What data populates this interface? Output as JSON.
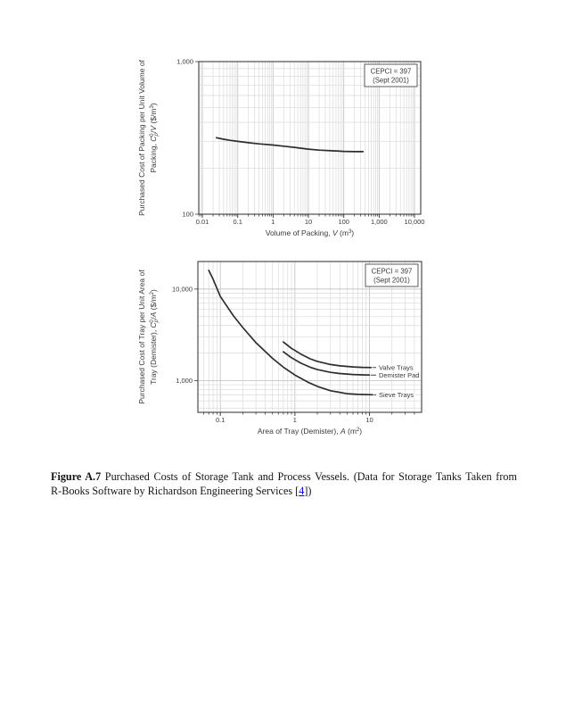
{
  "page": {
    "caption": {
      "label": "Figure A.7",
      "line1_rest": "Purchased Costs of Storage Tank and Process Vessels. (Data for Storage Tanks Taken from",
      "line2_before": "R-Books Software by Richardson Engineering Services [",
      "link_text": "4",
      "line2_after": "])",
      "link_color": "#0000cc"
    }
  },
  "chart_data": [
    {
      "type": "line",
      "name": "packing-cost-chart",
      "xscale": "log",
      "yscale": "log",
      "xlim": [
        0.0079,
        15000
      ],
      "ylim": [
        100,
        1000
      ],
      "xticks": [
        0.01,
        0.1,
        1,
        10,
        100,
        1000,
        10000
      ],
      "xtick_labels": [
        "0.01",
        "0.1",
        "1",
        "10",
        "100",
        "1,000",
        "10,000"
      ],
      "yticks": [
        100,
        1000
      ],
      "ytick_labels": [
        "100",
        "1,000"
      ],
      "grid": true,
      "annotation": [
        "CEPCI = 397",
        "(Sept 2001)"
      ],
      "xlabel_parts": [
        {
          "t": "Volume of Packing,  "
        },
        {
          "t": "V",
          "i": true
        },
        {
          "t": " (m"
        },
        {
          "t": "3",
          "v": "sup"
        },
        {
          "t": ")"
        }
      ],
      "ylabel_lines": [
        [
          {
            "t": "Purchased Cost of Packing per Unit Volume of"
          }
        ],
        [
          {
            "t": "Packing, "
          },
          {
            "t": "C",
            "i": true
          },
          {
            "t": "p",
            "i": true,
            "v": "sub"
          },
          {
            "t": "0",
            "v": "sup",
            "dx": -3.6
          },
          {
            "t": "/",
            "dx": 0.5
          },
          {
            "t": "V",
            "i": true
          },
          {
            "t": " ($/m"
          },
          {
            "t": "3",
            "v": "sup"
          },
          {
            "t": ")"
          }
        ]
      ],
      "series": [
        {
          "name": "Packing",
          "label": null,
          "x": [
            0.025,
            0.04,
            0.06,
            0.1,
            0.2,
            0.4,
            1,
            2,
            4,
            10,
            20,
            50,
            100,
            200,
            350
          ],
          "y": [
            317,
            310,
            305,
            300,
            294,
            289,
            284,
            279,
            274,
            267,
            263,
            260,
            258,
            257,
            257
          ]
        }
      ]
    },
    {
      "type": "line",
      "name": "tray-cost-chart",
      "xscale": "log",
      "yscale": "log",
      "xlim": [
        0.05,
        50
      ],
      "ylim": [
        450,
        20000
      ],
      "xticks": [
        0.1,
        1,
        10
      ],
      "xtick_labels": [
        "0.1",
        "1",
        "10"
      ],
      "yticks": [
        1000,
        10000
      ],
      "ytick_labels": [
        "1,000",
        "10,000"
      ],
      "grid": true,
      "annotation": [
        "CEPCI = 397",
        "(Sept 2001)"
      ],
      "xlabel_parts": [
        {
          "t": "Area of Tray (Demister), "
        },
        {
          "t": "A",
          "i": true
        },
        {
          "t": " (m"
        },
        {
          "t": "2",
          "v": "sup"
        },
        {
          "t": ")"
        }
      ],
      "ylabel_lines": [
        [
          {
            "t": "Purchased Cost of Tray per Unit Area of"
          }
        ],
        [
          {
            "t": "Tray (Demister), "
          },
          {
            "t": "C",
            "i": true
          },
          {
            "t": "p",
            "i": true,
            "v": "sub"
          },
          {
            "t": "0",
            "v": "sup",
            "dx": -3.6
          },
          {
            "t": "/",
            "dx": 0.5
          },
          {
            "t": "A",
            "i": true
          },
          {
            "t": " ($/m"
          },
          {
            "t": "2",
            "v": "sup"
          },
          {
            "t": ")"
          }
        ]
      ],
      "series": [
        {
          "name": "Sieve Trays",
          "label": "Sieve Trays",
          "x": [
            0.07,
            0.08,
            0.1,
            0.15,
            0.2,
            0.3,
            0.5,
            0.7,
            1,
            1.5,
            2,
            3,
            5,
            7,
            11
          ],
          "y": [
            16000,
            12800,
            8300,
            5100,
            3800,
            2600,
            1750,
            1400,
            1150,
            960,
            865,
            775,
            720,
            706,
            700
          ]
        },
        {
          "name": "Valve Trays",
          "label": "Valve Trays",
          "x": [
            0.7,
            0.9,
            1.2,
            1.6,
            2,
            3,
            4,
            6,
            8,
            10.5
          ],
          "y": [
            2640,
            2250,
            1950,
            1730,
            1620,
            1500,
            1450,
            1410,
            1395,
            1390
          ]
        },
        {
          "name": "Demister Pad",
          "label": "Demister Pad",
          "x": [
            0.7,
            0.9,
            1.2,
            1.6,
            2,
            3,
            4,
            6,
            8,
            10
          ],
          "y": [
            2060,
            1780,
            1550,
            1400,
            1320,
            1230,
            1195,
            1165,
            1155,
            1150
          ]
        }
      ]
    }
  ]
}
